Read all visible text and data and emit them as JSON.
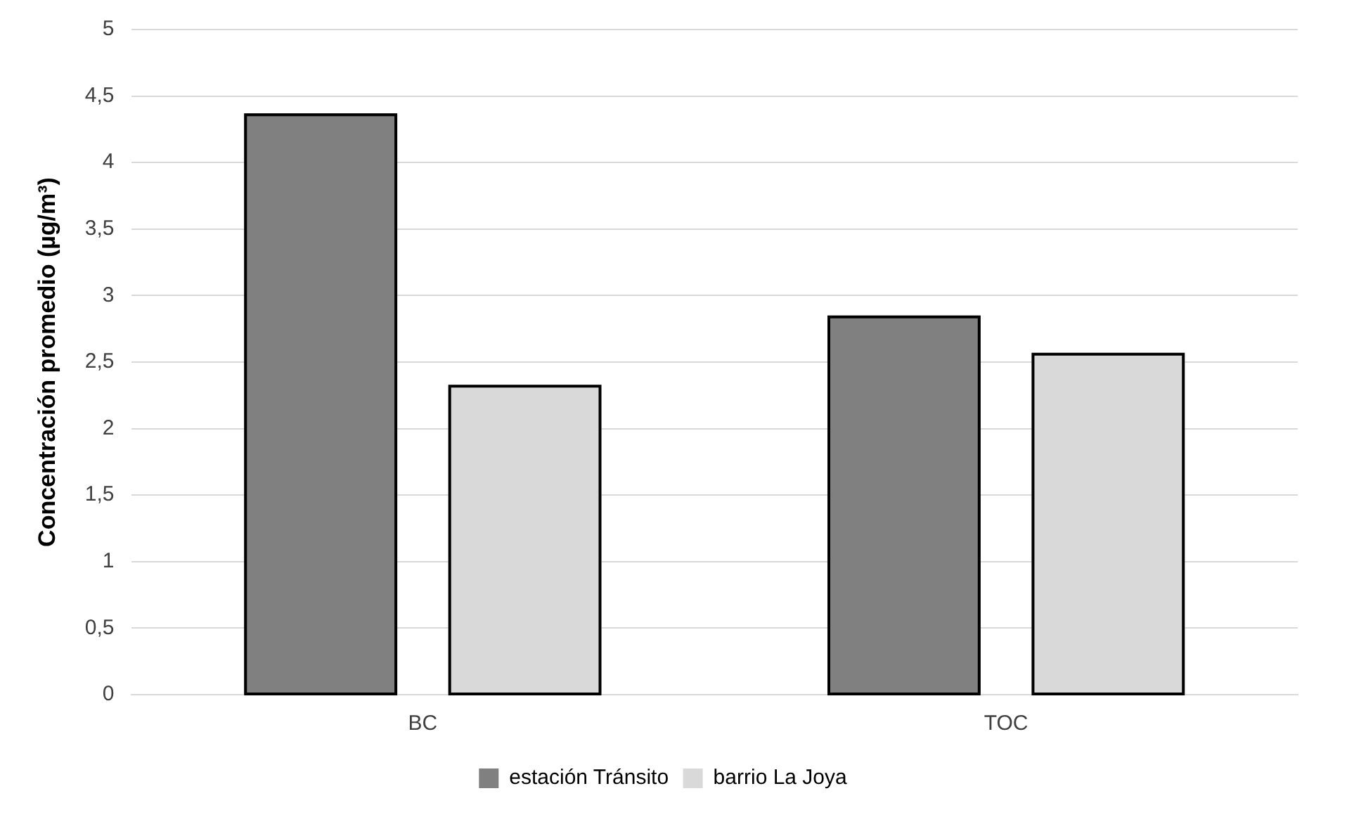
{
  "chart_data": {
    "type": "bar",
    "ylabel": "Concentración promedio (µg/m³)",
    "categories": [
      "BC",
      "TOC"
    ],
    "series": [
      {
        "name": "estación Tránsito",
        "color": "#808080",
        "values": [
          4.37,
          2.85
        ]
      },
      {
        "name": "barrio La Joya",
        "color": "#d9d9d9",
        "values": [
          2.33,
          2.57
        ]
      }
    ],
    "ylim": [
      0,
      5
    ],
    "yticks": [
      0,
      {
        "value": 0.5,
        "label": "0,5"
      },
      1,
      {
        "value": 1.5,
        "label": "1,5"
      },
      2,
      {
        "value": 2.5,
        "label": "2,5"
      },
      3,
      {
        "value": 3.5,
        "label": "3,5"
      },
      4,
      {
        "value": 4.5,
        "label": "4,5"
      },
      5
    ],
    "grid": "y",
    "legend": "bottom"
  }
}
